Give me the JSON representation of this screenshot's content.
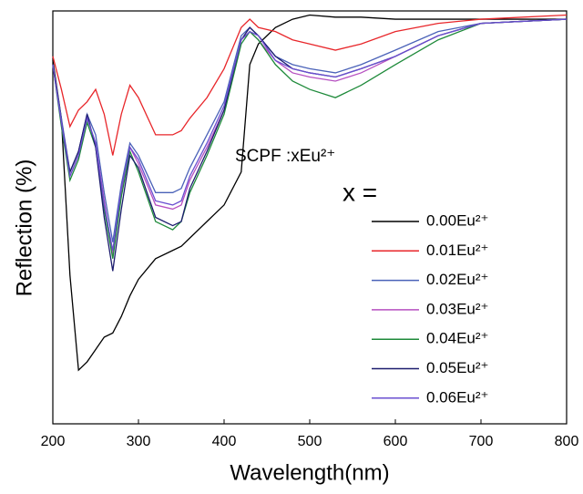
{
  "chart_data": {
    "type": "line",
    "xlabel": "Wavelength(nm)",
    "ylabel": "Reflection (%)",
    "annotation": "SCPF :xEu²⁺",
    "legend_title": "x =",
    "xlim": [
      200,
      800
    ],
    "xticks": [
      200,
      300,
      400,
      500,
      600,
      700,
      800
    ],
    "ylim": [
      0,
      100
    ],
    "yticks": [],
    "x": [
      200,
      210,
      220,
      230,
      240,
      250,
      260,
      270,
      280,
      290,
      300,
      320,
      340,
      350,
      360,
      380,
      400,
      420,
      430,
      440,
      460,
      480,
      500,
      530,
      560,
      600,
      650,
      700,
      800
    ],
    "series": [
      {
        "name": "0.00Eu²⁺",
        "color": "#000000",
        "values": [
          88,
          74,
          36,
          13,
          15,
          18,
          21,
          22,
          26,
          31,
          35,
          40,
          42,
          43,
          45,
          49,
          53,
          61,
          87,
          92,
          96,
          98,
          99,
          98.5,
          98.5,
          98,
          98,
          98,
          98
        ]
      },
      {
        "name": "0.01Eu²⁺",
        "color": "#e8262a",
        "values": [
          89,
          81,
          72,
          76,
          78,
          81,
          75,
          65,
          75,
          82,
          79,
          70,
          70,
          71,
          74,
          79,
          86,
          96,
          98,
          96,
          95,
          93,
          92,
          90.5,
          92,
          95,
          97,
          98,
          99
        ]
      },
      {
        "name": "0.02Eu²⁺",
        "color": "#4a62b8",
        "values": [
          87,
          74,
          61,
          66,
          75,
          70,
          56,
          44,
          58,
          68,
          65,
          56,
          56,
          57,
          62,
          70,
          78,
          94,
          96,
          94,
          89,
          87,
          86,
          85,
          87,
          90.5,
          95,
          97,
          98
        ]
      },
      {
        "name": "0.03Eu²⁺",
        "color": "#b64fc0",
        "values": [
          87,
          73,
          60,
          65,
          74,
          68,
          54,
          41,
          56,
          67,
          63,
          53,
          52,
          53,
          59,
          67,
          76,
          93,
          95,
          93,
          88,
          85,
          84,
          83,
          85,
          89,
          94,
          97,
          98
        ]
      },
      {
        "name": "0.04Eu²⁺",
        "color": "#1e8a3a",
        "values": [
          87,
          72,
          59,
          64,
          73,
          67,
          52,
          40,
          55,
          66,
          61,
          49,
          47,
          49,
          56,
          65,
          75,
          92,
          95,
          93,
          87,
          83,
          81,
          79,
          82,
          87,
          93,
          97,
          98
        ]
      },
      {
        "name": "0.05Eu²⁺",
        "color": "#1c1c6e",
        "values": [
          87,
          73,
          61,
          66,
          75,
          67,
          50,
          37,
          52,
          65,
          62,
          50,
          48,
          49,
          57,
          66,
          76,
          93,
          96,
          94,
          89,
          86,
          85,
          84,
          86,
          89,
          94,
          97,
          98
        ]
      },
      {
        "name": "0.06Eu²⁺",
        "color": "#6a4fd0",
        "values": [
          87,
          73,
          60,
          65,
          74,
          68,
          53,
          42,
          57,
          67,
          64,
          54,
          53,
          54,
          60,
          68,
          77,
          93,
          95,
          94,
          88,
          86,
          85,
          84,
          86,
          89,
          94,
          97,
          98
        ]
      }
    ]
  }
}
